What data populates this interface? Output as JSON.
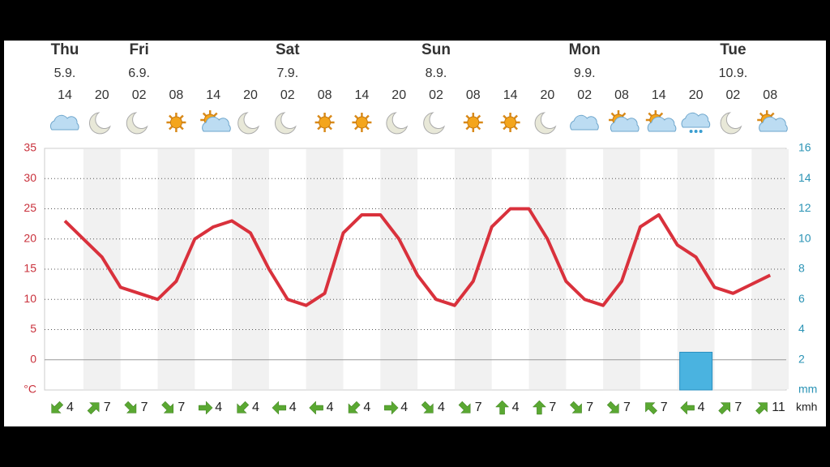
{
  "chart_data": {
    "type": "line",
    "days": [
      {
        "name": "Thu",
        "date": "5.9."
      },
      {
        "name": "Fri",
        "date": "6.9."
      },
      {
        "name": "Sat",
        "date": "7.9."
      },
      {
        "name": "Sun",
        "date": "8.9."
      },
      {
        "name": "Mon",
        "date": "9.9."
      },
      {
        "name": "Tue",
        "date": "10.9."
      }
    ],
    "categories": [
      "14",
      null,
      "20",
      null,
      "02",
      null,
      "08",
      null,
      "14",
      null,
      "20",
      null,
      "02",
      null,
      "08",
      null,
      "14",
      null,
      "20",
      null,
      "02",
      null,
      "08",
      null,
      "14",
      null,
      "20",
      null,
      "02",
      null,
      "08",
      null,
      "14",
      null,
      "20",
      null,
      "02",
      null,
      "08"
    ],
    "values": [
      23,
      20,
      17,
      12,
      11,
      10,
      13,
      20,
      22,
      23,
      21,
      15,
      10,
      9,
      11,
      21,
      24,
      24,
      20,
      14,
      10,
      9,
      13,
      22,
      25,
      25,
      20,
      13,
      10,
      9,
      13,
      22,
      24,
      19,
      17,
      12,
      11,
      12.5,
      14
    ],
    "color": "#d9313c",
    "ylim": [
      -5,
      35
    ],
    "yticks": [
      {
        "value": -5,
        "label": "°C"
      },
      0,
      5,
      10,
      15,
      20,
      25,
      30,
      35
    ],
    "y2lim": [
      0,
      16
    ],
    "y2ticks": [
      {
        "value": 0,
        "label": "mm"
      },
      2,
      4,
      6,
      8,
      10,
      12,
      14,
      16
    ],
    "precipitation": {
      "axis": "y2",
      "color": "#4ab3e0",
      "values": [
        0,
        0,
        0,
        0,
        0,
        0,
        0,
        0,
        0,
        0,
        0,
        0,
        0,
        0,
        0,
        0,
        0,
        2.5,
        0,
        0
      ]
    },
    "wind": {
      "speeds": [
        4,
        7,
        7,
        7,
        4,
        4,
        4,
        4,
        4,
        4,
        4,
        7,
        4,
        7,
        7,
        7,
        7,
        4,
        7,
        11
      ],
      "unit": "kmh"
    },
    "grid": true
  }
}
